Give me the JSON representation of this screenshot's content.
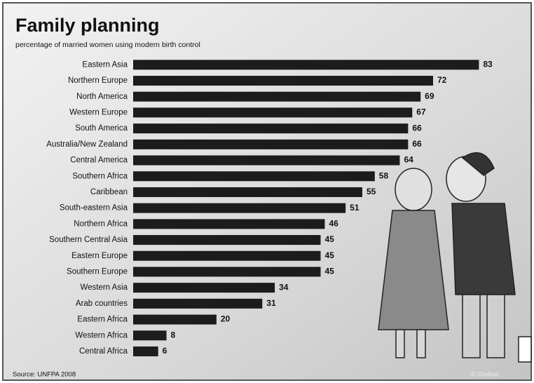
{
  "chart_data": {
    "type": "bar",
    "orientation": "horizontal",
    "title": "Family planning",
    "subtitle": "percentage of married women using modern birth control",
    "source": "Source: UNFPA 2008",
    "credit": "© Globus",
    "categories": [
      "Eastern Asia",
      "Northern Europe",
      "North America",
      "Western Europe",
      "South America",
      "Australia/New Zealand",
      "Central America",
      "Southern Africa",
      "Caribbean",
      "South-eastern Asia",
      "Northern Africa",
      "Southern Central Asia",
      "Eastern Europe",
      "Southern Europe",
      "Western Asia",
      "Arab countries",
      "Eastern Africa",
      "Western Africa",
      "Central Africa"
    ],
    "values": [
      83,
      72,
      69,
      67,
      66,
      66,
      64,
      58,
      55,
      51,
      46,
      45,
      45,
      45,
      34,
      31,
      20,
      8,
      6
    ],
    "color": "#1c1c1c",
    "xlim": [
      0,
      90
    ]
  }
}
